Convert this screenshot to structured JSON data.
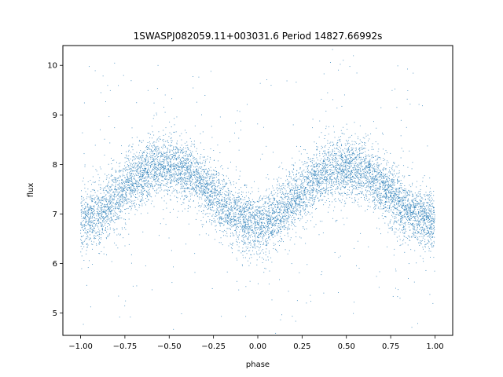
{
  "chart_data": {
    "type": "scatter",
    "title": "1SWASPJ082059.11+003031.6 Period 14827.66992s",
    "xlabel": "phase",
    "ylabel": "flux",
    "xlim": [
      -1.1,
      1.1
    ],
    "ylim": [
      4.55,
      10.4
    ],
    "xticks": [
      -1.0,
      -0.75,
      -0.5,
      -0.25,
      0.0,
      0.25,
      0.5,
      0.75,
      1.0
    ],
    "xtick_labels": [
      "−1.00",
      "−0.75",
      "−0.50",
      "−0.25",
      "0.00",
      "0.25",
      "0.50",
      "0.75",
      "1.00"
    ],
    "yticks": [
      5,
      6,
      7,
      8,
      9,
      10
    ],
    "ytick_labels": [
      "5",
      "6",
      "7",
      "8",
      "9",
      "10"
    ],
    "grid": false,
    "marker_color": "#1f77b4",
    "series": [
      {
        "x": [
          -1.0,
          -0.95,
          -0.9,
          -0.85,
          -0.8,
          -0.75,
          -0.7,
          -0.65,
          -0.6,
          -0.55,
          -0.5,
          -0.45,
          -0.4,
          -0.35,
          -0.3,
          -0.25,
          -0.2,
          -0.15,
          -0.1,
          -0.05,
          0.0,
          0.05,
          0.1,
          0.15,
          0.2,
          0.25,
          0.3,
          0.35,
          0.4,
          0.45,
          0.5,
          0.55,
          0.6,
          0.65,
          0.7,
          0.75,
          0.8,
          0.85,
          0.9,
          0.95,
          1.0
        ],
        "y": [
          6.85,
          6.9,
          7.0,
          7.15,
          7.3,
          7.5,
          7.7,
          7.82,
          7.9,
          7.95,
          7.95,
          7.92,
          7.85,
          7.72,
          7.55,
          7.38,
          7.2,
          7.05,
          6.92,
          6.85,
          6.82,
          6.85,
          6.95,
          7.1,
          7.28,
          7.45,
          7.62,
          7.78,
          7.88,
          7.93,
          7.95,
          7.92,
          7.85,
          7.72,
          7.55,
          7.38,
          7.2,
          7.05,
          6.95,
          6.88,
          6.85
        ],
        "spread": [
          0.3,
          0.3,
          0.3,
          0.3,
          0.3,
          0.3,
          0.3,
          0.3,
          0.3,
          0.3,
          0.3,
          0.3,
          0.3,
          0.3,
          0.3,
          0.3,
          0.3,
          0.3,
          0.3,
          0.3,
          0.3,
          0.3,
          0.3,
          0.3,
          0.3,
          0.3,
          0.3,
          0.3,
          0.3,
          0.3,
          0.3,
          0.3,
          0.3,
          0.3,
          0.3,
          0.3,
          0.3,
          0.3,
          0.3,
          0.3,
          0.3
        ]
      }
    ]
  }
}
